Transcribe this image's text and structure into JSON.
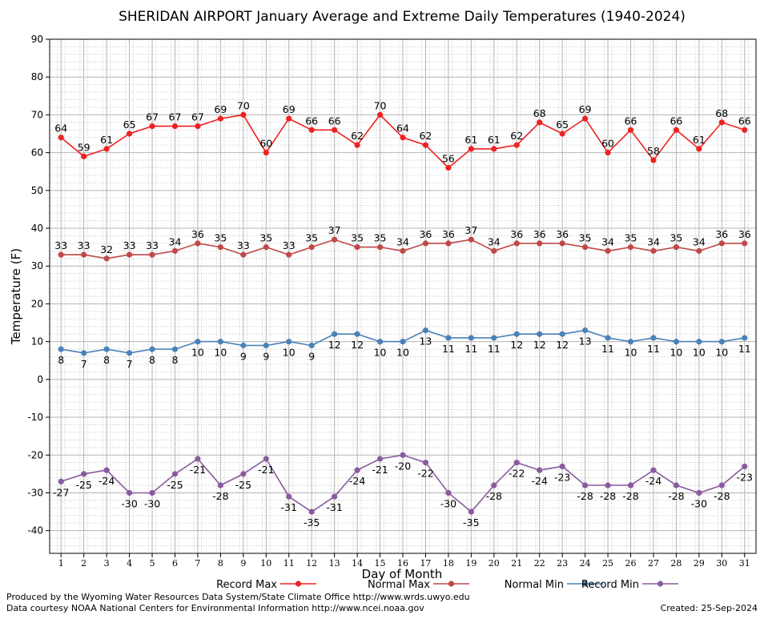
{
  "chart_data": {
    "type": "line",
    "title": "SHERIDAN AIRPORT January Average and Extreme Daily Temperatures (1940-2024)",
    "xlabel": "Day of Month",
    "ylabel": "Temperature (F)",
    "x": [
      1,
      2,
      3,
      4,
      5,
      6,
      7,
      8,
      9,
      10,
      11,
      12,
      13,
      14,
      15,
      16,
      17,
      18,
      19,
      20,
      21,
      22,
      23,
      24,
      25,
      26,
      27,
      28,
      29,
      30,
      31
    ],
    "ylim": [
      -46,
      90
    ],
    "yticks": [
      90,
      80,
      70,
      60,
      50,
      40,
      30,
      20,
      10,
      0,
      -10,
      -20,
      -30,
      -40
    ],
    "grid": true,
    "legend_position": "bottom",
    "series": [
      {
        "name": "Record Max",
        "color": "#ee2222",
        "labels_above": true,
        "values": [
          64,
          59,
          61,
          65,
          67,
          67,
          67,
          69,
          70,
          60,
          69,
          66,
          66,
          62,
          70,
          64,
          62,
          56,
          61,
          61,
          62,
          68,
          65,
          69,
          60,
          66,
          58,
          66,
          61,
          68,
          66
        ]
      },
      {
        "name": "Normal Max",
        "color": "#c04848",
        "labels_above": true,
        "values": [
          33,
          33,
          32,
          33,
          33,
          34,
          36,
          35,
          33,
          35,
          33,
          35,
          37,
          35,
          35,
          34,
          36,
          36,
          37,
          34,
          36,
          36,
          36,
          35,
          34,
          35,
          34,
          35,
          34,
          36,
          36
        ]
      },
      {
        "name": "Normal Min",
        "color": "#4a82b8",
        "labels_above": false,
        "values": [
          8,
          7,
          8,
          7,
          8,
          8,
          10,
          10,
          9,
          9,
          10,
          9,
          12,
          12,
          10,
          10,
          13,
          11,
          11,
          11,
          12,
          12,
          12,
          13,
          11,
          10,
          11,
          10,
          10,
          10,
          11
        ]
      },
      {
        "name": "Record Min",
        "color": "#8a5a9e",
        "labels_above": false,
        "values": [
          -27,
          -25,
          -24,
          -30,
          -30,
          -25,
          -21,
          -28,
          -25,
          -21,
          -31,
          -35,
          -31,
          -24,
          -21,
          -20,
          -22,
          -30,
          -35,
          -28,
          -22,
          -24,
          -23,
          -28,
          -28,
          -28,
          -24,
          -28,
          -30,
          -28,
          -23
        ]
      }
    ]
  },
  "footer": {
    "line1": "Produced by the Wyoming Water Resources Data System/State Climate Office http://www.wrds.uwyo.edu",
    "line2": "Data courtesy NOAA National Centers for Environmental Information http://www.ncei.noaa.gov",
    "created": "Created:  25-Sep-2024"
  }
}
